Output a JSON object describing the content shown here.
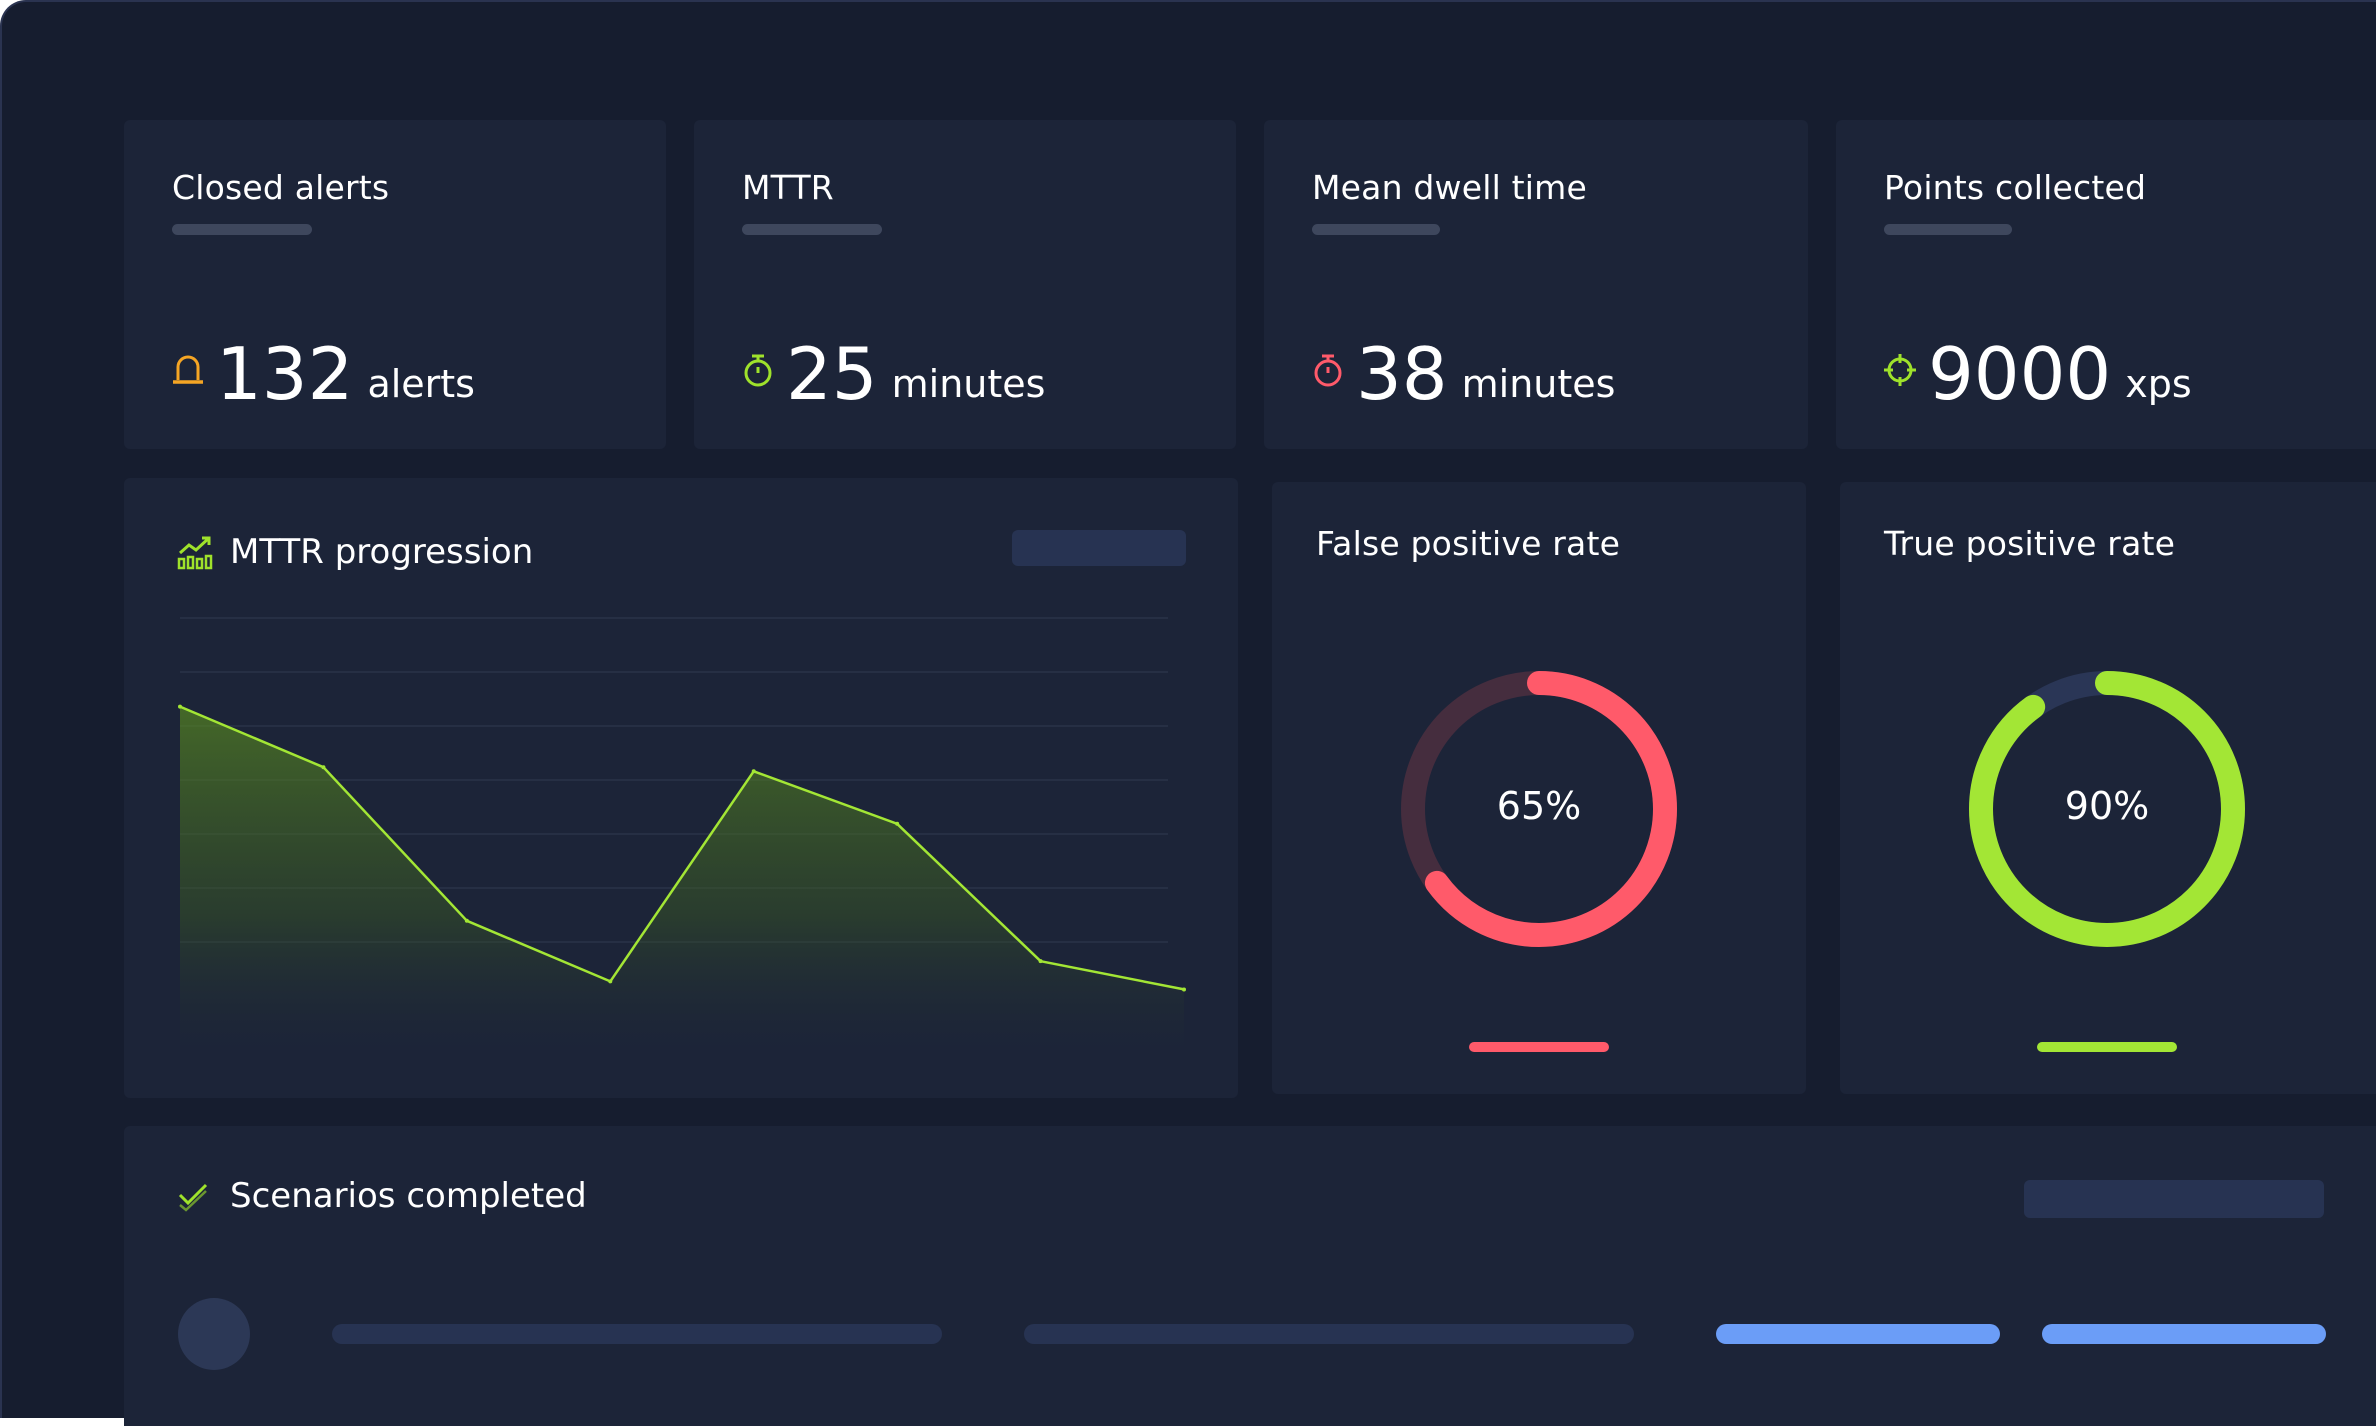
{
  "metrics": [
    {
      "title": "Closed alerts",
      "value": "132",
      "unit": "alerts",
      "icon": "alarm-light-icon",
      "icon_color": "#f5a524"
    },
    {
      "title": "MTTR",
      "value": "25",
      "unit": "minutes",
      "icon": "stopwatch-icon",
      "icon_color": "#9fe22b"
    },
    {
      "title": "Mean dwell time",
      "value": "38",
      "unit": "minutes",
      "icon": "stopwatch-icon",
      "icon_color": "#ff5a6a"
    },
    {
      "title": "Points collected",
      "value": "9000",
      "unit": "xps",
      "icon": "crosshair-icon",
      "icon_color": "#9fe22b"
    }
  ],
  "mttr_chart": {
    "title": "MTTR progression",
    "icon": "chart-growth-icon",
    "chart_data": {
      "type": "area",
      "x": [
        0,
        1,
        2,
        3,
        4,
        5,
        6,
        7
      ],
      "values": [
        84,
        69,
        31,
        16,
        68,
        55,
        21,
        14
      ],
      "ylim": [
        0,
        100
      ],
      "grid": true,
      "color": "#a3e635"
    }
  },
  "rates": [
    {
      "title": "False positive rate",
      "label": "65%",
      "value": 65,
      "color": "#ff5a6a",
      "track": "#452d3e"
    },
    {
      "title": "True positive rate",
      "label": "90%",
      "value": 90,
      "color": "#a3e635",
      "track": "#2a3656"
    }
  ],
  "scenarios": {
    "title": "Scenarios completed",
    "icon": "checkmark-icon",
    "accent": "#6b9df7"
  }
}
